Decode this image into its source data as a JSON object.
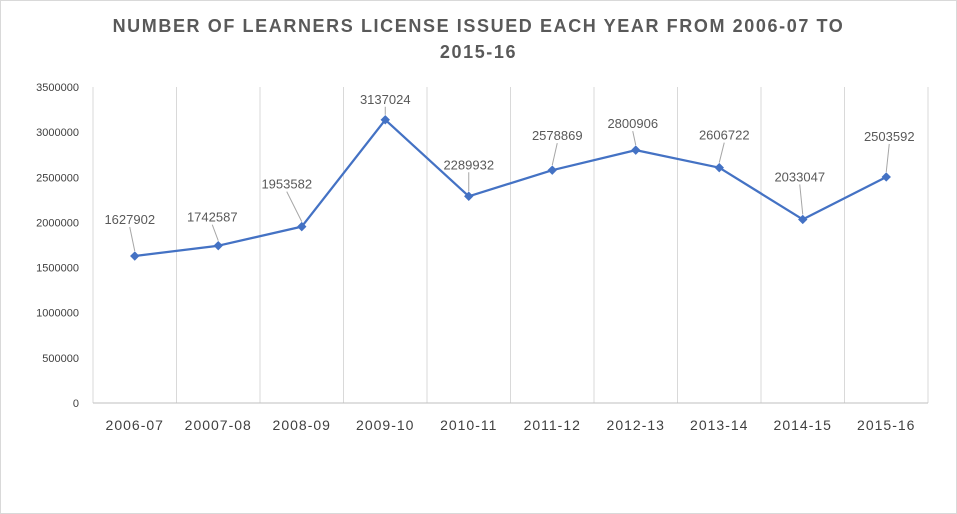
{
  "chart_data": {
    "type": "line",
    "title": "NUMBER OF LEARNERS LICENSE ISSUED EACH YEAR FROM 2006-07 TO 2015-16",
    "categories": [
      "2006-07",
      "20007-08",
      "2008-09",
      "2009-10",
      "2010-11",
      "2011-12",
      "2012-13",
      "2013-14",
      "2014-15",
      "2015-16"
    ],
    "series": [
      {
        "values": [
          1627902,
          1742587,
          1953582,
          3137024,
          2289932,
          2578869,
          2800906,
          2606722,
          2033047,
          2503592
        ],
        "color": "#4472c4",
        "marker": "diamond"
      }
    ],
    "data_labels": [
      "1627902",
      "1742587",
      "1953582",
      "3137024",
      "2289932",
      "2578869",
      "2800906",
      "2606722",
      "2033047",
      "2503592"
    ],
    "y_ticks": [
      "0",
      "500000",
      "1000000",
      "1500000",
      "2000000",
      "2500000",
      "3000000",
      "3500000"
    ],
    "ylim": [
      0,
      3500000
    ],
    "grid": "vertical",
    "legend": "none",
    "xlabel": "",
    "ylabel": ""
  },
  "colors": {
    "line": "#4472c4",
    "grid": "#d9d9d9",
    "axis": "#bfbfbf",
    "leader": "#a6a6a6",
    "text": "#404040"
  }
}
